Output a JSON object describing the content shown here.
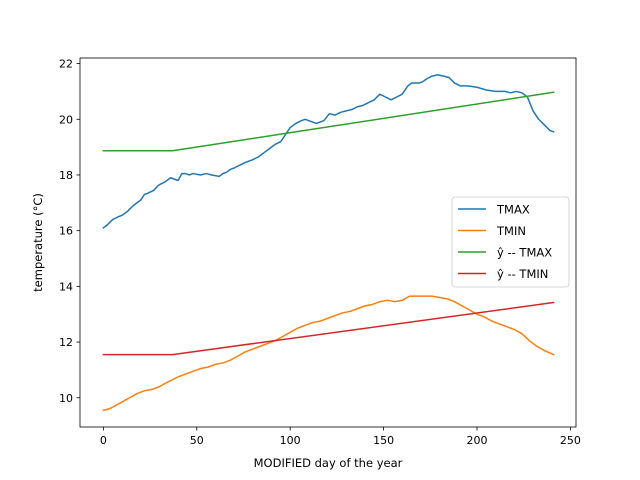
{
  "chart_data": {
    "type": "line",
    "title": "",
    "xlabel": "MODIFIED day of the year",
    "ylabel": "temperature (°C)",
    "xlim": [
      -12.5,
      253
    ],
    "ylim": [
      8.95,
      22.2
    ],
    "xticks": [
      0,
      50,
      100,
      150,
      200,
      250
    ],
    "yticks": [
      10,
      12,
      14,
      16,
      18,
      20,
      22
    ],
    "grid": false,
    "legend_position": "center-right",
    "series": [
      {
        "name": "TMAX",
        "color": "#1f77b4",
        "x": [
          0,
          2,
          5,
          8,
          10,
          13,
          16,
          20,
          22,
          24,
          27,
          29,
          30,
          33,
          35,
          36,
          38,
          40,
          42,
          44,
          46,
          48,
          52,
          55,
          58,
          62,
          64,
          66,
          68,
          70,
          73,
          76,
          78,
          80,
          83,
          86,
          89,
          92,
          95,
          98,
          100,
          103,
          106,
          108,
          110,
          112,
          114,
          116,
          118,
          121,
          124,
          127,
          130,
          133,
          136,
          139,
          142,
          145,
          148,
          151,
          154,
          157,
          160,
          163,
          165,
          167,
          169,
          171,
          173,
          176,
          179,
          182,
          185,
          188,
          191,
          195,
          200,
          205,
          210,
          215,
          218,
          221,
          224,
          227,
          230,
          233,
          236,
          239,
          241
        ],
        "y": [
          16.1,
          16.2,
          16.4,
          16.5,
          16.55,
          16.7,
          16.9,
          17.1,
          17.3,
          17.35,
          17.45,
          17.6,
          17.65,
          17.75,
          17.85,
          17.9,
          17.85,
          17.8,
          18.05,
          18.05,
          18.0,
          18.05,
          18.0,
          18.05,
          18.0,
          17.95,
          18.05,
          18.1,
          18.2,
          18.25,
          18.35,
          18.45,
          18.5,
          18.55,
          18.65,
          18.8,
          18.95,
          19.1,
          19.2,
          19.5,
          19.7,
          19.85,
          19.95,
          20.0,
          19.95,
          19.9,
          19.85,
          19.9,
          19.95,
          20.2,
          20.15,
          20.25,
          20.3,
          20.35,
          20.45,
          20.5,
          20.6,
          20.7,
          20.9,
          20.8,
          20.7,
          20.8,
          20.9,
          21.2,
          21.3,
          21.3,
          21.3,
          21.35,
          21.45,
          21.55,
          21.6,
          21.55,
          21.5,
          21.3,
          21.2,
          21.2,
          21.15,
          21.05,
          21.0,
          21.0,
          20.95,
          21.0,
          20.95,
          20.8,
          20.3,
          20.0,
          19.8,
          19.6,
          19.55
        ]
      },
      {
        "name": "TMIN",
        "color": "#ff7f0e",
        "x": [
          0,
          3,
          6,
          10,
          14,
          18,
          22,
          26,
          30,
          34,
          37,
          40,
          44,
          48,
          52,
          56,
          60,
          64,
          68,
          72,
          76,
          80,
          84,
          88,
          92,
          96,
          100,
          104,
          108,
          112,
          116,
          120,
          124,
          128,
          132,
          136,
          140,
          144,
          148,
          152,
          156,
          160,
          164,
          168,
          172,
          176,
          180,
          184,
          188,
          192,
          196,
          200,
          204,
          208,
          212,
          216,
          220,
          224,
          228,
          232,
          236,
          241
        ],
        "y": [
          9.55,
          9.6,
          9.7,
          9.85,
          10.0,
          10.15,
          10.25,
          10.3,
          10.4,
          10.55,
          10.65,
          10.75,
          10.85,
          10.95,
          11.05,
          11.1,
          11.2,
          11.25,
          11.35,
          11.5,
          11.65,
          11.75,
          11.85,
          11.95,
          12.05,
          12.2,
          12.35,
          12.5,
          12.6,
          12.7,
          12.75,
          12.85,
          12.95,
          13.05,
          13.1,
          13.2,
          13.3,
          13.35,
          13.45,
          13.5,
          13.45,
          13.5,
          13.65,
          13.65,
          13.65,
          13.65,
          13.6,
          13.55,
          13.45,
          13.3,
          13.15,
          13.0,
          12.9,
          12.75,
          12.65,
          12.55,
          12.45,
          12.3,
          12.05,
          11.85,
          11.7,
          11.55
        ]
      },
      {
        "name": "ŷ -- TMAX",
        "color": "#2ca02c",
        "x": [
          0,
          37,
          241
        ],
        "y": [
          18.87,
          18.87,
          20.97
        ]
      },
      {
        "name": "ŷ -- TMIN",
        "color": "#d62728",
        "x": [
          0,
          37,
          241
        ],
        "y": [
          11.55,
          11.55,
          13.42
        ]
      }
    ]
  }
}
